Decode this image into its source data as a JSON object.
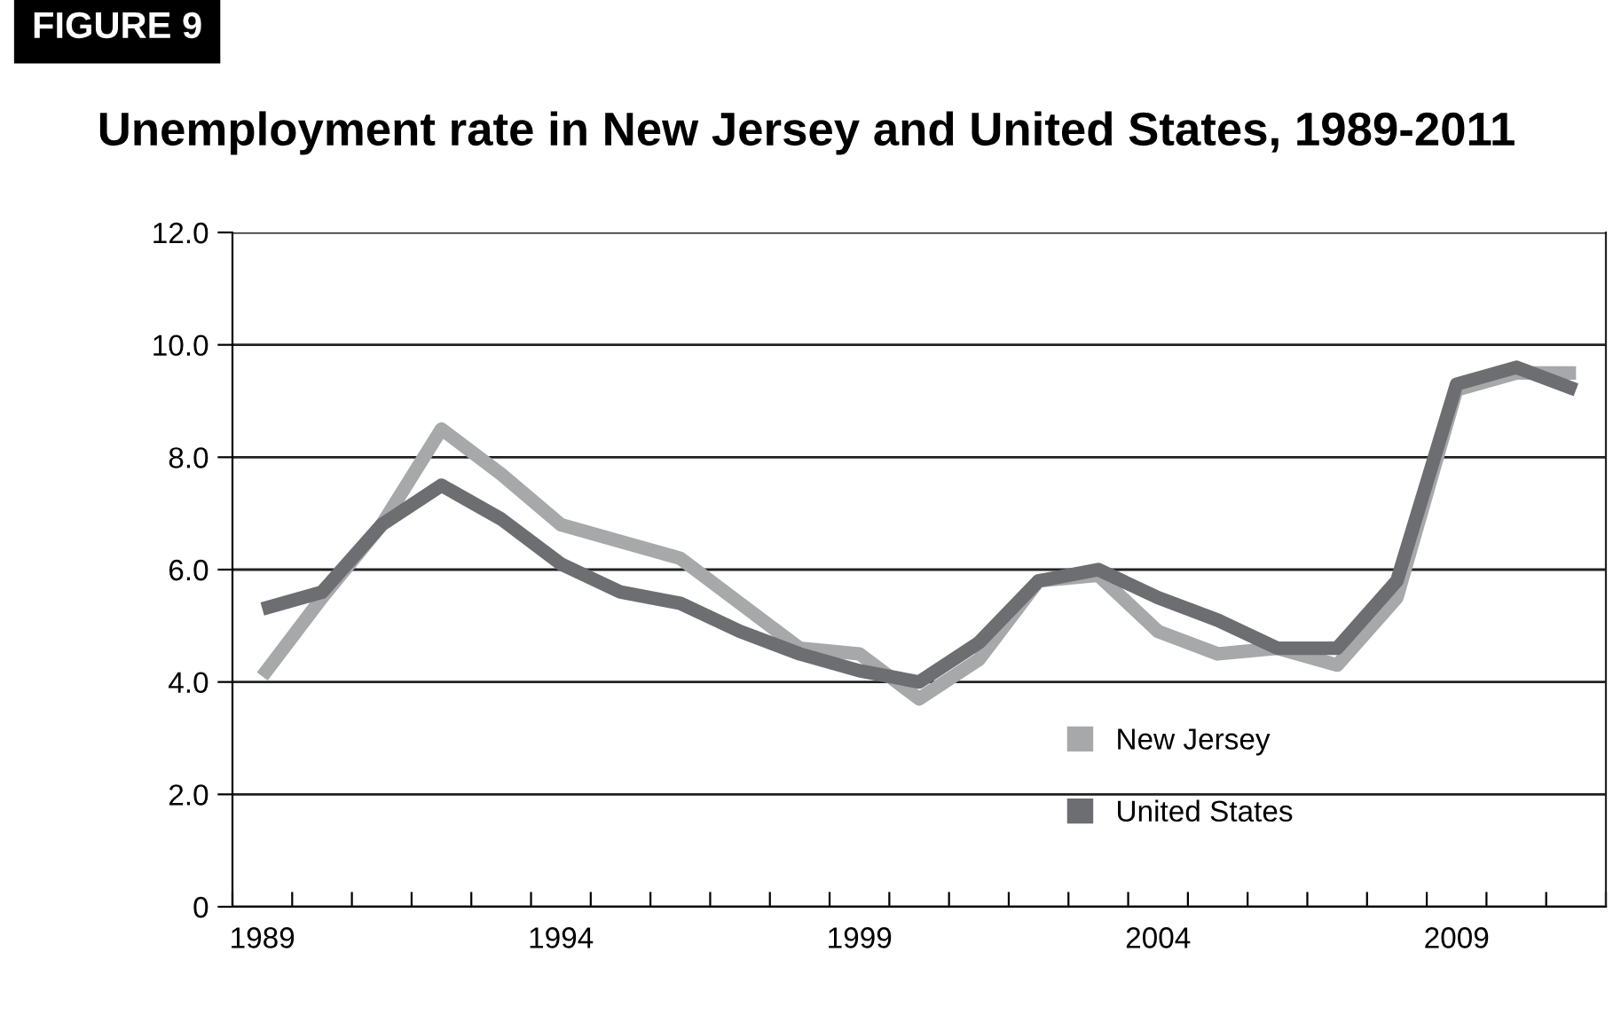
{
  "chart_data": {
    "type": "line",
    "title": "Unemployment rate in New Jersey and United States, 1989-2011",
    "annotations": [
      "FIGURE 9"
    ],
    "categories": [
      "1989",
      null,
      null,
      null,
      null,
      "1994",
      null,
      null,
      null,
      null,
      "1999",
      null,
      null,
      null,
      null,
      "2004",
      null,
      null,
      null,
      null,
      "2009",
      null,
      null
    ],
    "series": [
      {
        "name": "New Jersey",
        "color": "#a7a8aa",
        "values": [
          4.1,
          5.5,
          6.8,
          8.5,
          7.7,
          6.8,
          6.5,
          6.2,
          5.4,
          4.6,
          4.5,
          3.7,
          4.4,
          5.8,
          5.9,
          4.9,
          4.5,
          4.6,
          4.3,
          5.5,
          9.2,
          9.5,
          9.5
        ]
      },
      {
        "name": "United States",
        "color": "#6d6e71",
        "values": [
          5.3,
          5.6,
          6.8,
          7.5,
          6.9,
          6.1,
          5.6,
          5.4,
          4.9,
          4.5,
          4.2,
          4.0,
          4.7,
          5.8,
          6.0,
          5.5,
          5.1,
          4.6,
          4.6,
          5.8,
          9.3,
          9.6,
          9.2
        ]
      }
    ],
    "ylim": [
      0,
      12
    ],
    "yticks": [
      {
        "value": 0,
        "label": "0"
      },
      {
        "value": 2,
        "label": "2.0"
      },
      {
        "value": 4,
        "label": "4.0"
      },
      {
        "value": 6,
        "label": "6.0"
      },
      {
        "value": 8,
        "label": "8.0"
      },
      {
        "value": 10,
        "label": "10.0"
      },
      {
        "value": 12,
        "label": "12.0"
      }
    ],
    "grid": "y",
    "legend": "bottom right",
    "marker": "none",
    "line_style": "solid"
  }
}
